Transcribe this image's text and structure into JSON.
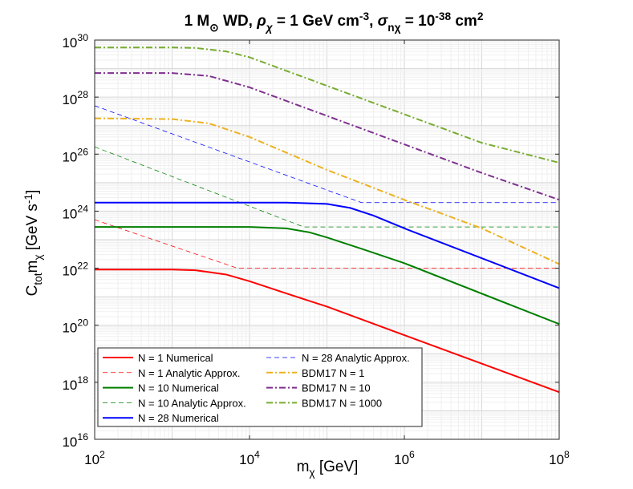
{
  "chart_data": {
    "type": "line",
    "title": {
      "parts": [
        {
          "t": "1 M"
        },
        {
          "t": "⊙",
          "sub": true
        },
        {
          "t": " WD, "
        },
        {
          "t": "ρ",
          "italic": true
        },
        {
          "t": "χ",
          "sub": true,
          "italic": true
        },
        {
          "t": " = 1 GeV cm"
        },
        {
          "t": "-3",
          "sup": true
        },
        {
          "t": ", "
        },
        {
          "t": "σ",
          "italic": true
        },
        {
          "t": "nχ",
          "sub": true
        },
        {
          "t": " = 10"
        },
        {
          "t": "-38",
          "sup": true
        },
        {
          "t": " cm"
        },
        {
          "t": "2",
          "sup": true
        }
      ]
    },
    "xlabel": {
      "parts": [
        {
          "t": "m"
        },
        {
          "t": "χ",
          "sub": true
        },
        {
          "t": " [GeV]"
        }
      ]
    },
    "ylabel": {
      "parts": [
        {
          "t": "C"
        },
        {
          "t": "tot",
          "sub": true
        },
        {
          "t": "m"
        },
        {
          "t": "χ",
          "sub": true
        },
        {
          "t": " [GeV s"
        },
        {
          "t": "-1",
          "sup": true
        },
        {
          "t": "]"
        }
      ]
    },
    "xscale": "log",
    "yscale": "log",
    "xlim": [
      100,
      100000000
    ],
    "ylim": [
      1e+16,
      1e+30
    ],
    "xticks": [
      {
        "value": 100,
        "base": "10",
        "exp": "2"
      },
      {
        "value": 10000,
        "base": "10",
        "exp": "4"
      },
      {
        "value": 1000000,
        "base": "10",
        "exp": "6"
      },
      {
        "value": 100000000,
        "base": "10",
        "exp": "8"
      }
    ],
    "yticks": [
      {
        "value": 1e+16,
        "base": "10",
        "exp": "16"
      },
      {
        "value": 1e+18,
        "base": "10",
        "exp": "18"
      },
      {
        "value": 1e+20,
        "base": "10",
        "exp": "20"
      },
      {
        "value": 1e+22,
        "base": "10",
        "exp": "22"
      },
      {
        "value": 1e+24,
        "base": "10",
        "exp": "24"
      },
      {
        "value": 1e+26,
        "base": "10",
        "exp": "26"
      },
      {
        "value": 1e+28,
        "base": "10",
        "exp": "28"
      },
      {
        "value": 1e+30,
        "base": "10",
        "exp": "30"
      }
    ],
    "grid": true,
    "legend_position": "bottom-left",
    "legend_columns": 2,
    "series": [
      {
        "name": "N = 1 Numerical",
        "color": "#ff0000",
        "style": "solid",
        "width": "thick",
        "x": [
          100,
          1000,
          2000,
          5000,
          10000,
          30000,
          100000,
          100000000
        ],
        "y": [
          9e+21,
          9e+21,
          8.5e+21,
          6e+21,
          3.5e+21,
          1.3e+21,
          4.5e+20,
          4.5e+17
        ]
      },
      {
        "name": "N = 1 Analytic Approx.",
        "color": "#ff0000",
        "style": "dashed",
        "width": "thin",
        "x": [
          100,
          7000,
          100000000
        ],
        "y": [
          5e+23,
          1e+22,
          1e+22
        ]
      },
      {
        "name": "N = 10 Numerical",
        "color": "#008000",
        "style": "solid",
        "width": "thick",
        "x": [
          100,
          10000,
          30000,
          60000,
          100000,
          300000,
          1000000,
          100000000
        ],
        "y": [
          2.8e+23,
          2.8e+23,
          2.5e+23,
          1.8e+23,
          1.2e+23,
          4.5e+22,
          1.5e+22,
          1.1e+20
        ]
      },
      {
        "name": "N = 10 Analytic Approx.",
        "color": "#008000",
        "style": "dashed",
        "width": "thin",
        "x": [
          100,
          50000,
          100000000
        ],
        "y": [
          1.8e+26,
          2.8e+23,
          2.8e+23
        ]
      },
      {
        "name": "N = 28 Numerical",
        "color": "#0000ff",
        "style": "solid",
        "width": "thick",
        "x": [
          100,
          30000,
          100000,
          200000,
          400000,
          1000000,
          100000000
        ],
        "y": [
          2e+24,
          2e+24,
          1.8e+24,
          1.3e+24,
          7e+23,
          2.5e+23,
          2e+21
        ]
      },
      {
        "name": "N = 28 Analytic Approx.",
        "color": "#0000ff",
        "style": "dashed",
        "width": "thin",
        "x": [
          100,
          280000,
          100000000
        ],
        "y": [
          5e+27,
          2e+24,
          2e+24
        ]
      },
      {
        "name": "BDM17 N = 1",
        "color": "#edb120",
        "style": "dashdot",
        "width": "thick",
        "x": [
          100,
          1000,
          3000,
          10000,
          100000,
          1000000,
          10000000,
          100000000
        ],
        "y": [
          1.8e+27,
          1.7e+27,
          1.2e+27,
          4e+26,
          2.8e+25,
          2.5e+24,
          2.5e+23,
          1.4e+22
        ]
      },
      {
        "name": "BDM17 N = 10",
        "color": "#7e2f8e",
        "style": "dashdot",
        "width": "thick",
        "x": [
          100,
          1000,
          3000,
          10000,
          100000,
          1000000,
          10000000,
          100000000
        ],
        "y": [
          7e+28,
          7e+28,
          5.5e+28,
          2.2e+28,
          2.2e+27,
          2.2e+26,
          2.2e+25,
          2.5e+24
        ]
      },
      {
        "name": "BDM17 N = 1000",
        "color": "#77ac30",
        "style": "dashdot",
        "width": "thick",
        "x": [
          100,
          1000,
          2000,
          5000,
          10000,
          100000,
          1000000,
          10000000,
          100000000
        ],
        "y": [
          5.5e+29,
          5.5e+29,
          5.3e+29,
          4e+29,
          2.5e+29,
          2.5e+28,
          2.5e+27,
          2.5e+26,
          5e+25
        ]
      }
    ]
  }
}
